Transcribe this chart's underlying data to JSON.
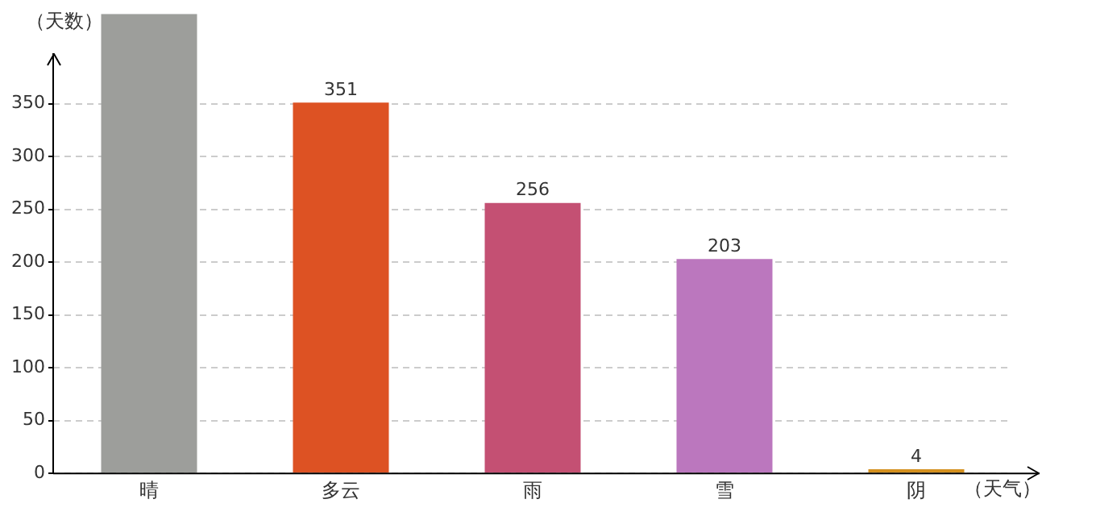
{
  "chart_data": {
    "type": "bar",
    "xlabel": "（天气）",
    "ylabel": "（天数）",
    "categories": [
      "晴",
      "多云",
      "雨",
      "雪",
      "阴"
    ],
    "values": [
      435,
      351,
      256,
      203,
      4
    ],
    "colors": [
      "#9d9e9b",
      "#dd5223",
      "#c45073",
      "#bb77be",
      "#d4901e"
    ],
    "value_labels": [
      null,
      "351",
      "256",
      "203",
      "4"
    ],
    "ylim": [
      0,
      435
    ],
    "yticks": [
      0,
      50,
      100,
      150,
      200,
      250,
      300,
      350
    ],
    "grid": "y",
    "legend": false
  }
}
